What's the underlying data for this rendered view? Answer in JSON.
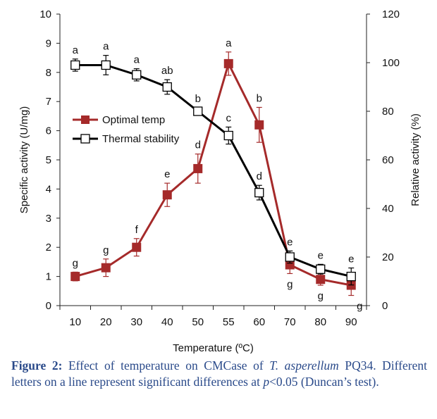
{
  "chart_data": {
    "type": "line",
    "categories": [
      "10",
      "20",
      "30",
      "40",
      "50",
      "55",
      "60",
      "70",
      "80",
      "90"
    ],
    "xlabel": "Temperature (ºC)",
    "ylabel_left": "Specific activity (U/mg)",
    "ylabel_right": "Relative activity (%)",
    "ylim_left": [
      0,
      10
    ],
    "ylim_right": [
      0,
      120
    ],
    "yticks_left": [
      "0",
      "1",
      "2",
      "3",
      "4",
      "5",
      "6",
      "7",
      "8",
      "9",
      "10"
    ],
    "yticks_right": [
      "0",
      "20",
      "40",
      "60",
      "80",
      "100",
      "120"
    ],
    "legend_position": "middle-left",
    "series": [
      {
        "name": "Optimal temp",
        "axis": "left",
        "color": "#a52a2a",
        "marker": "filled-square",
        "values": [
          1.0,
          1.3,
          2.0,
          3.8,
          4.7,
          8.3,
          6.2,
          1.4,
          0.9,
          0.7
        ],
        "errors": [
          0.15,
          0.3,
          0.3,
          0.4,
          0.5,
          0.4,
          0.6,
          0.3,
          0.2,
          0.35
        ],
        "letters": [
          "g",
          "g",
          "f",
          "e",
          "d",
          "a",
          "b",
          "g",
          "g",
          "g"
        ]
      },
      {
        "name": "Thermal stability",
        "axis": "right",
        "color": "#000000",
        "marker": "open-square",
        "values": [
          99,
          99,
          95,
          90,
          80,
          70,
          46.5,
          20,
          15,
          12
        ],
        "errors": [
          2.5,
          4,
          2.5,
          3,
          1.5,
          3.5,
          3,
          2.5,
          2,
          3.5
        ],
        "letters": [
          "a",
          "a",
          "a",
          "ab",
          "b",
          "c",
          "d",
          "e",
          "e",
          "e"
        ]
      }
    ]
  },
  "caption": {
    "label": "Figure 2:",
    "text_before_species": " Effect of temperature on CMCase of ",
    "species": "T. asperellum",
    "text_after_species": " PQ34. Different letters on a line represent significant differences at ",
    "p_symbol": "p",
    "text_end": "<0.05 (Duncan’s test)."
  }
}
